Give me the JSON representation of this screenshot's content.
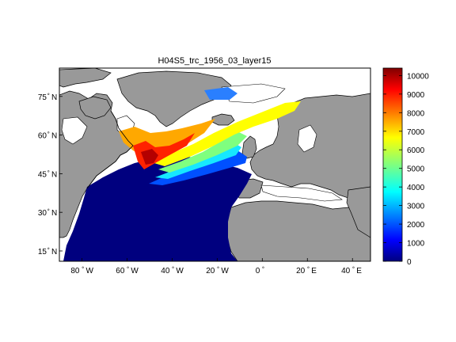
{
  "figure": {
    "title": "H04S5_trc_1956_03_layer15"
  },
  "map": {
    "lon_range": [
      -90,
      48
    ],
    "lat_range": [
      11,
      86
    ],
    "longitude_ticks": [
      {
        "value": -80,
        "label": "80",
        "hemi": "W"
      },
      {
        "value": -60,
        "label": "60",
        "hemi": "W"
      },
      {
        "value": -40,
        "label": "40",
        "hemi": "W"
      },
      {
        "value": -20,
        "label": "20",
        "hemi": "W"
      },
      {
        "value": 0,
        "label": "0",
        "hemi": ""
      },
      {
        "value": 20,
        "label": "20",
        "hemi": "E"
      },
      {
        "value": 40,
        "label": "40",
        "hemi": "E"
      }
    ],
    "latitude_ticks": [
      {
        "value": 75,
        "label": "75",
        "hemi": "N"
      },
      {
        "value": 60,
        "label": "60",
        "hemi": "N"
      },
      {
        "value": 45,
        "label": "45",
        "hemi": "N"
      },
      {
        "value": 30,
        "label": "30",
        "hemi": "N"
      },
      {
        "value": 15,
        "label": "15",
        "hemi": "N"
      }
    ],
    "land_color": "#999999",
    "ocean_low_color": "#00007f",
    "nodata_color": "#ffffff"
  },
  "colorbar": {
    "min": 0,
    "max": 10400,
    "colormap": "jet",
    "ticks": [
      "0",
      "1000",
      "2000",
      "3000",
      "4000",
      "5000",
      "6000",
      "7000",
      "8000",
      "9000",
      "10000"
    ]
  }
}
